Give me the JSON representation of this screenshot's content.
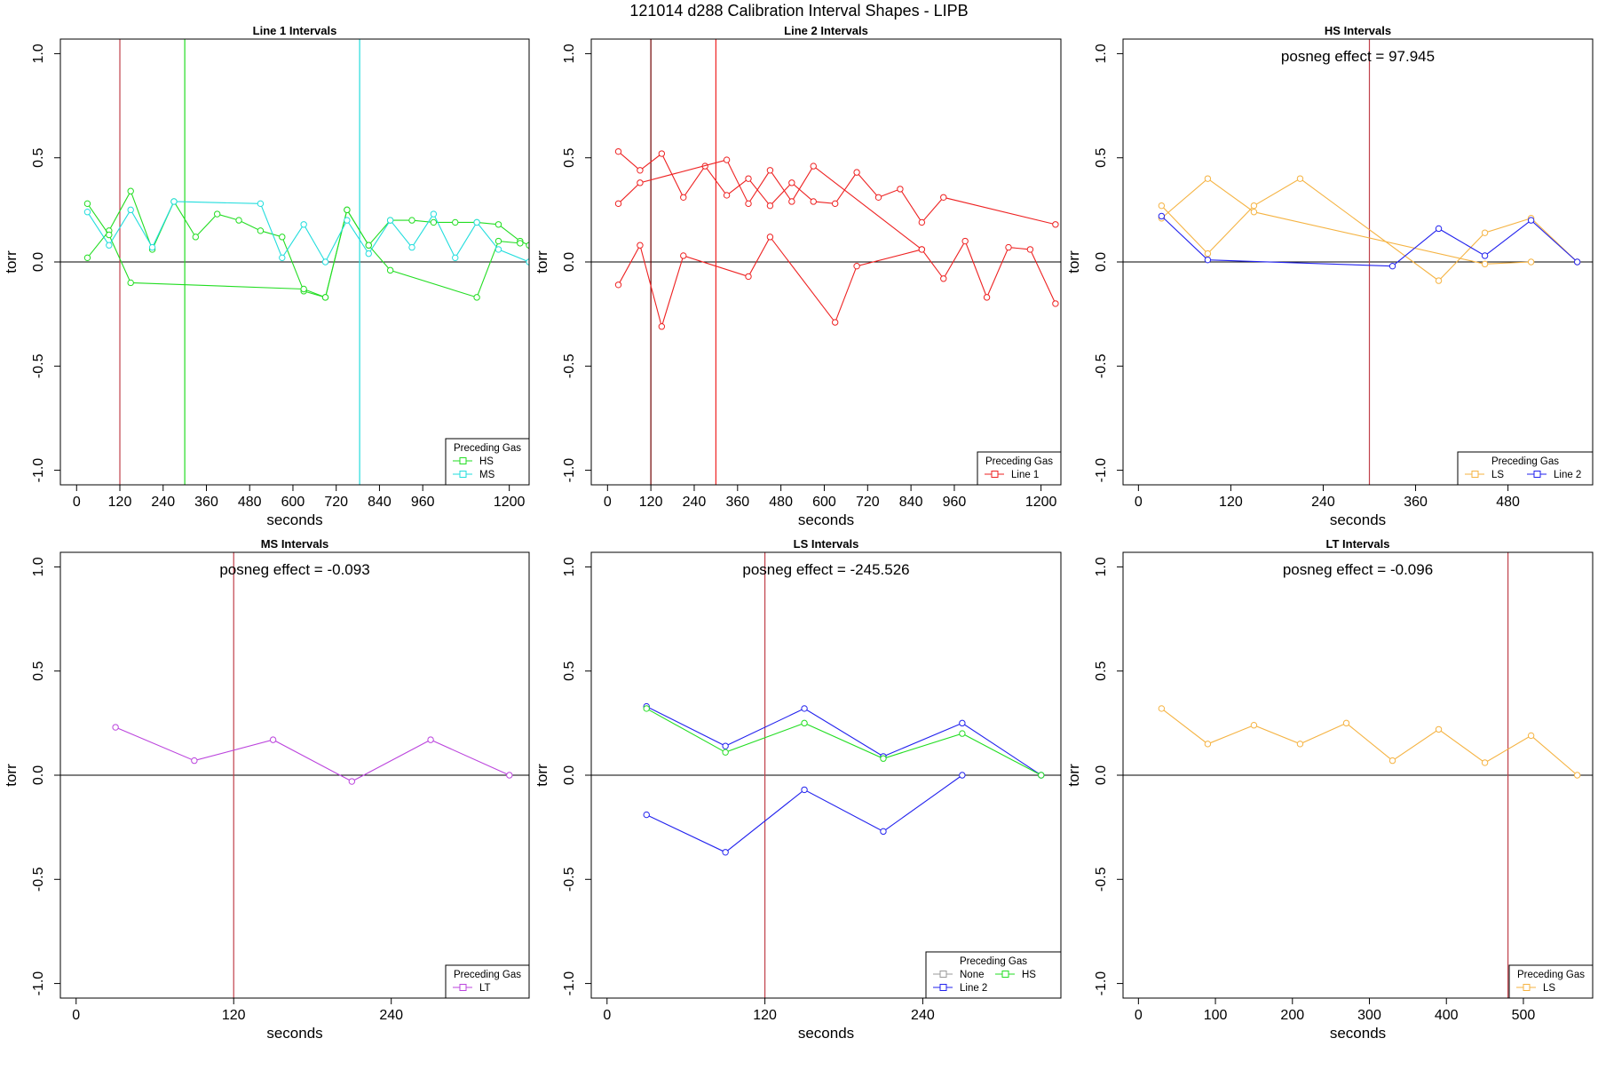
{
  "figure_title": "121014   d288   Calibration Interval Shapes - LIPB",
  "colors": {
    "HS": "#22dd22",
    "MS": "#22dddd",
    "Line 1": "#ee2222",
    "Line 2": "#2222ee",
    "LS": "#f5b342",
    "LT": "#bb44dd",
    "None": "#999999",
    "vline_red": "#c0404a",
    "vline_dark": "#700000",
    "vline_green": "#22dd22",
    "vline_cyan": "#22dddd"
  },
  "chart_data": [
    {
      "type": "line",
      "title": "Line 1 Intervals",
      "xlabel": "seconds",
      "ylabel": "torr",
      "xlim": [
        -45,
        1255
      ],
      "ylim": [
        -1.07,
        1.07
      ],
      "xticks": [
        0,
        120,
        240,
        360,
        480,
        600,
        720,
        840,
        960,
        1200
      ],
      "yticks": [
        1.0,
        0.5,
        0.0,
        -0.5,
        -1.0
      ],
      "ytick_labels": [
        "1.0",
        "0.5",
        "0.0",
        "-0.5",
        "-1.0"
      ],
      "annotation": "",
      "vlines": [
        {
          "x": 120,
          "color": "#c0404a"
        },
        {
          "x": 300,
          "color": "#22dd22"
        },
        {
          "x": 785,
          "color": "#22dddd"
        }
      ],
      "legend_title": "Preceding Gas",
      "legend_entries": [
        [
          "HS"
        ],
        [
          "MS"
        ]
      ],
      "series": [
        {
          "name": "HS",
          "color": "#22dd22",
          "x": [
            30,
            90,
            150,
            210,
            270,
            330,
            390,
            450,
            510,
            570,
            630,
            690,
            750,
            810,
            870,
            930,
            990,
            1050,
            1110,
            1170,
            1230,
            1255
          ],
          "y": [
            0.02,
            0.15,
            0.34,
            0.06,
            0.29,
            0.12,
            0.23,
            0.2,
            0.15,
            0.12,
            -0.14,
            -0.17,
            0.25,
            0.08,
            0.2,
            0.2,
            0.19,
            0.19,
            0.19,
            0.18,
            0.1,
            0.08
          ],
          "hollow": [],
          "note": ""
        },
        {
          "name": "HS2",
          "color": "#22dd22",
          "x": [
            30,
            90,
            150,
            630,
            690,
            750,
            810,
            870,
            1110,
            1170,
            1230
          ],
          "y": [
            0.28,
            0.13,
            -0.1,
            -0.13,
            -0.17,
            0.25,
            0.08,
            -0.04,
            -0.17,
            0.1,
            0.09
          ],
          "hollow": [],
          "note": ""
        },
        {
          "name": "MS",
          "color": "#22dddd",
          "x": [
            30,
            90,
            150,
            210,
            270,
            510,
            570,
            630,
            690,
            750,
            810,
            870,
            930,
            990,
            1050,
            1110,
            1170,
            1255
          ],
          "y": [
            0.24,
            0.08,
            0.25,
            0.07,
            0.29,
            0.28,
            0.02,
            0.18,
            0.0,
            0.2,
            0.04,
            0.2,
            0.07,
            0.23,
            0.02,
            0.19,
            0.06,
            0.0
          ],
          "hollow": [],
          "note": ""
        }
      ]
    },
    {
      "type": "line",
      "title": "Line 2 Intervals",
      "xlabel": "seconds",
      "ylabel": "torr",
      "xlim": [
        -45,
        1255
      ],
      "ylim": [
        -1.07,
        1.07
      ],
      "xticks": [
        0,
        120,
        240,
        360,
        480,
        600,
        720,
        840,
        960,
        1200
      ],
      "yticks": [
        1.0,
        0.5,
        0.0,
        -0.5,
        -1.0
      ],
      "ytick_labels": [
        "1.0",
        "0.5",
        "0.0",
        "-0.5",
        "-1.0"
      ],
      "annotation": "",
      "vlines": [
        {
          "x": 120,
          "color": "#700000"
        },
        {
          "x": 300,
          "color": "#ee2222"
        }
      ],
      "legend_title": "Preceding Gas",
      "legend_entries": [
        [
          "Line 1"
        ]
      ],
      "series": [
        {
          "name": "Line 1 a",
          "color": "#ee2222",
          "x": [
            30,
            90,
            150,
            210,
            270,
            330,
            390,
            450,
            510,
            570,
            630,
            690,
            750,
            810,
            870,
            930,
            1240
          ],
          "y": [
            0.53,
            0.44,
            0.52,
            0.31,
            0.46,
            0.32,
            0.4,
            0.27,
            0.38,
            0.29,
            0.28,
            0.43,
            0.31,
            0.35,
            0.19,
            0.31,
            0.18
          ],
          "hollow": [],
          "note": ""
        },
        {
          "name": "Line 1 b",
          "color": "#ee2222",
          "x": [
            30,
            90,
            330,
            390,
            450,
            510,
            570,
            870
          ],
          "y": [
            0.28,
            0.38,
            0.49,
            0.28,
            0.44,
            0.29,
            0.46,
            0.06
          ],
          "hollow": [],
          "note": ""
        },
        {
          "name": "Line 1 c",
          "color": "#ee2222",
          "x": [
            30,
            90,
            150,
            210,
            390,
            450,
            630,
            690,
            870,
            930,
            990,
            1050,
            1110,
            1170,
            1240
          ],
          "y": [
            -0.11,
            0.08,
            -0.31,
            0.03,
            -0.07,
            0.12,
            -0.29,
            -0.02,
            0.06,
            -0.08,
            0.1,
            -0.17,
            0.07,
            0.06,
            -0.2
          ],
          "hollow": [],
          "note": ""
        }
      ]
    },
    {
      "type": "line",
      "title": "HS Intervals",
      "xlabel": "seconds",
      "ylabel": "torr",
      "xlim": [
        -20,
        590
      ],
      "ylim": [
        -1.07,
        1.07
      ],
      "xticks": [
        0,
        120,
        240,
        360,
        480
      ],
      "yticks": [
        1.0,
        0.5,
        0.0,
        -0.5,
        -1.0
      ],
      "ytick_labels": [
        "1.0",
        "0.5",
        "0.0",
        "-0.5",
        "-1.0"
      ],
      "annotation": "posneg effect = 97.945",
      "vlines": [
        {
          "x": 300,
          "color": "#c0404a"
        }
      ],
      "legend_title": "Preceding Gas",
      "legend_entries": [
        [
          "LS",
          "Line 2"
        ]
      ],
      "series": [
        {
          "name": "LS",
          "color": "#f5b342",
          "x": [
            30,
            90,
            150,
            210,
            390,
            450,
            510,
            570
          ],
          "y": [
            0.27,
            0.04,
            0.27,
            0.4,
            -0.09,
            0.14,
            0.21,
            0.0
          ],
          "hollow": [],
          "note": ""
        },
        {
          "name": "LS b",
          "color": "#f5b342",
          "x": [
            30,
            90,
            150,
            450,
            510
          ],
          "y": [
            0.21,
            0.4,
            0.24,
            -0.01,
            0.0
          ],
          "hollow": [],
          "note": ""
        },
        {
          "name": "Line 2",
          "color": "#2222ee",
          "x": [
            30,
            90,
            330,
            390,
            450,
            510,
            570
          ],
          "y": [
            0.22,
            0.01,
            -0.02,
            0.16,
            0.03,
            0.2,
            0.0
          ],
          "hollow": [],
          "note": ""
        }
      ]
    },
    {
      "type": "line",
      "title": "MS Intervals",
      "xlabel": "seconds",
      "ylabel": "torr",
      "xlim": [
        -12,
        345
      ],
      "ylim": [
        -1.07,
        1.07
      ],
      "xticks": [
        0,
        120,
        240
      ],
      "yticks": [
        1.0,
        0.5,
        0.0,
        -0.5,
        -1.0
      ],
      "ytick_labels": [
        "1.0",
        "0.5",
        "0.0",
        "-0.5",
        "-1.0"
      ],
      "annotation": "posneg effect = -0.093",
      "vlines": [
        {
          "x": 120,
          "color": "#c0404a"
        }
      ],
      "legend_title": "Preceding Gas",
      "legend_entries": [
        [
          "LT"
        ]
      ],
      "series": [
        {
          "name": "LT",
          "color": "#bb44dd",
          "x": [
            30,
            90,
            150,
            210,
            270,
            330
          ],
          "y": [
            0.23,
            0.07,
            0.17,
            -0.03,
            0.17,
            0.0
          ],
          "hollow": [],
          "note": ""
        }
      ]
    },
    {
      "type": "line",
      "title": "LS Intervals",
      "xlabel": "seconds",
      "ylabel": "torr",
      "xlim": [
        -12,
        345
      ],
      "ylim": [
        -1.07,
        1.07
      ],
      "xticks": [
        0,
        120,
        240
      ],
      "yticks": [
        1.0,
        0.5,
        0.0,
        -0.5,
        -1.0
      ],
      "ytick_labels": [
        "1.0",
        "0.5",
        "0.0",
        "-0.5",
        "-1.0"
      ],
      "annotation": "posneg effect = -245.526",
      "vlines": [
        {
          "x": 120,
          "color": "#c0404a"
        }
      ],
      "legend_title": "Preceding Gas",
      "legend_entries": [
        [
          "None",
          "HS"
        ],
        [
          "Line 2"
        ]
      ],
      "series": [
        {
          "name": "Line 2",
          "color": "#2222ee",
          "x": [
            30,
            90,
            150,
            210,
            270,
            330
          ],
          "y": [
            0.33,
            0.14,
            0.32,
            0.09,
            0.25,
            0.0
          ],
          "hollow": [],
          "note": ""
        },
        {
          "name": "HS",
          "color": "#22dd22",
          "x": [
            30,
            90,
            150,
            210,
            270,
            330
          ],
          "y": [
            0.32,
            0.11,
            0.25,
            0.08,
            0.2,
            0.0
          ],
          "hollow": [],
          "note": ""
        },
        {
          "name": "Line 2 b",
          "color": "#2222ee",
          "x": [
            30,
            90,
            150,
            210,
            270
          ],
          "y": [
            -0.19,
            -0.37,
            -0.07,
            -0.27,
            0.0
          ],
          "hollow": [],
          "note": ""
        }
      ]
    },
    {
      "type": "line",
      "title": "LT Intervals",
      "xlabel": "seconds",
      "ylabel": "torr",
      "xlim": [
        -20,
        590
      ],
      "ylim": [
        -1.07,
        1.07
      ],
      "xticks": [
        0,
        100,
        200,
        300,
        400,
        500
      ],
      "yticks": [
        1.0,
        0.5,
        0.0,
        -0.5,
        -1.0
      ],
      "ytick_labels": [
        "1.0",
        "0.5",
        "0.0",
        "-0.5",
        "-1.0"
      ],
      "annotation": "posneg effect = -0.096",
      "vlines": [
        {
          "x": 480,
          "color": "#c0404a"
        }
      ],
      "legend_title": "Preceding Gas",
      "legend_entries": [
        [
          "LS"
        ]
      ],
      "series": [
        {
          "name": "LS",
          "color": "#f5b342",
          "x": [
            30,
            90,
            150,
            210,
            270,
            330,
            390,
            450,
            510,
            570
          ],
          "y": [
            0.32,
            0.15,
            0.24,
            0.15,
            0.25,
            0.07,
            0.22,
            0.06,
            0.19,
            0.0
          ],
          "hollow": [],
          "note": ""
        }
      ]
    }
  ]
}
